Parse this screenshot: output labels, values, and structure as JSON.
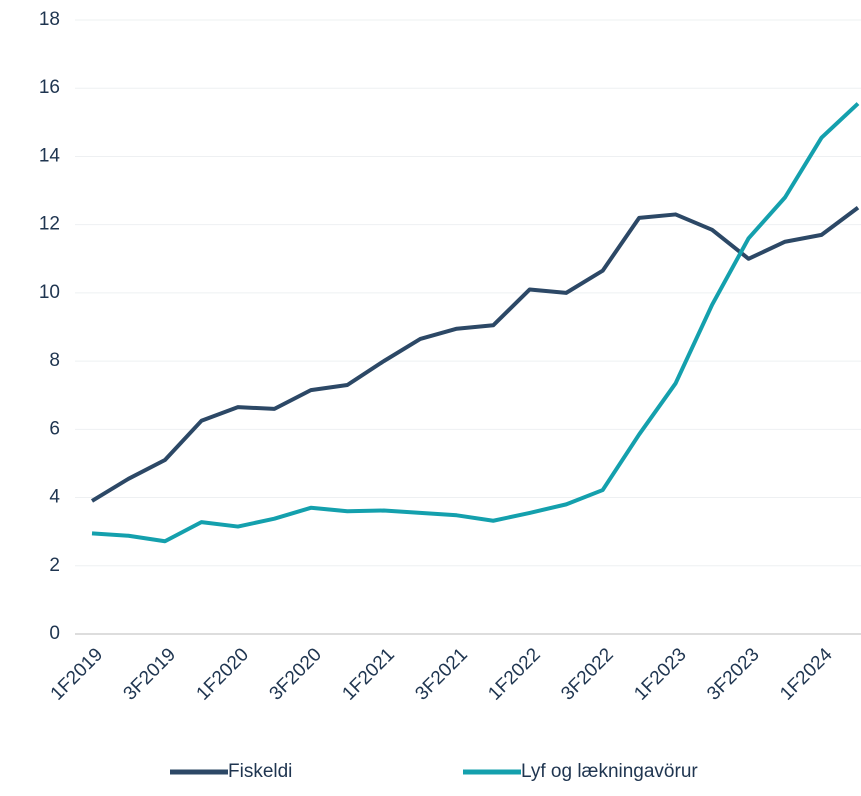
{
  "chart_data": {
    "type": "line",
    "categories": [
      "1F2019",
      null,
      "3F2019",
      null,
      "1F2020",
      null,
      "3F2020",
      null,
      "1F2021",
      null,
      "3F2021",
      null,
      "1F2022",
      null,
      "3F2022",
      null,
      "1F2023",
      null,
      "3F2023",
      null,
      "1F2024",
      null
    ],
    "series": [
      {
        "name": "Fiskeldi",
        "color": "#2c4866",
        "values": [
          3.9,
          4.55,
          5.1,
          6.25,
          6.65,
          6.6,
          7.15,
          7.3,
          8.0,
          8.65,
          8.95,
          9.05,
          10.1,
          10.0,
          10.65,
          12.2,
          12.3,
          11.85,
          11.0,
          11.5,
          11.7,
          12.5
        ]
      },
      {
        "name": "Lyf og lækningavörur",
        "color": "#14a0ad",
        "values": [
          2.95,
          2.88,
          2.72,
          3.28,
          3.15,
          3.38,
          3.7,
          3.6,
          3.62,
          3.55,
          3.48,
          3.32,
          3.55,
          3.8,
          4.22,
          5.85,
          7.35,
          9.65,
          11.6,
          12.8,
          14.55,
          15.55
        ]
      }
    ],
    "ylim": [
      0,
      18
    ],
    "yticks": [
      0,
      2,
      4,
      6,
      8,
      10,
      12,
      14,
      16,
      18
    ],
    "grid": true
  }
}
